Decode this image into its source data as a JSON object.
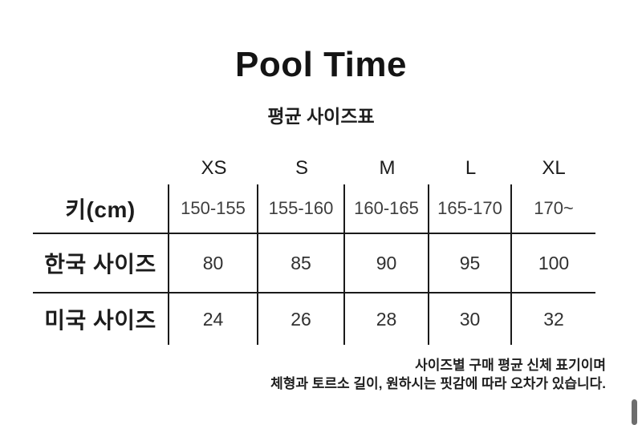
{
  "header": {
    "title": "Pool Time",
    "subtitle": "평균 사이즈표"
  },
  "table": {
    "col_headers": [
      "XS",
      "S",
      "M",
      "L",
      "XL"
    ],
    "rows": [
      {
        "label": "키(cm)",
        "values": [
          "150-155",
          "155-160",
          "160-165",
          "165-170",
          "170~"
        ]
      },
      {
        "label": "한국 사이즈",
        "values": [
          "80",
          "85",
          "90",
          "95",
          "100"
        ]
      },
      {
        "label": "미국 사이즈",
        "values": [
          "24",
          "26",
          "28",
          "30",
          "32"
        ]
      }
    ]
  },
  "footer": {
    "line1": "사이즈별 구매 평균 신체 표기이며",
    "line2": "체형과 토르소 길이, 원하시는 핏감에 따라 오차가 있습니다."
  },
  "colors": {
    "background": "#ffffff",
    "text": "#1c1c1c",
    "line": "#1a1a1a",
    "scrollbar_thumb": "#6d6d6d"
  },
  "chart_data": {
    "type": "table",
    "title": "Pool Time",
    "subtitle": "평균 사이즈표",
    "columns": [
      "",
      "XS",
      "S",
      "M",
      "L",
      "XL"
    ],
    "rows": [
      [
        "키(cm)",
        "150-155",
        "155-160",
        "160-165",
        "165-170",
        "170~"
      ],
      [
        "한국 사이즈",
        "80",
        "85",
        "90",
        "95",
        "100"
      ],
      [
        "미국 사이즈",
        "24",
        "26",
        "28",
        "30",
        "32"
      ]
    ],
    "notes": [
      "사이즈별 구매 평균 신체 표기이며",
      "체형과 토르소 길이, 원하시는 핏감에 따라 오차가 있습니다."
    ],
    "layout": {
      "grid": "partial",
      "header_row_unlined": true,
      "last_column_open_right": true
    }
  }
}
